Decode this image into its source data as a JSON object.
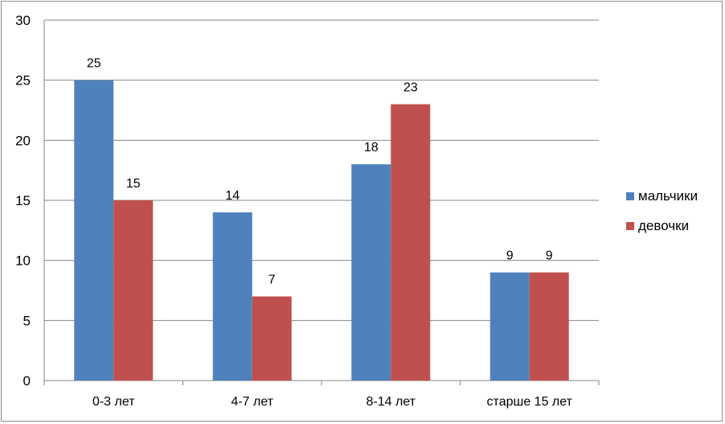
{
  "chart_data": {
    "type": "bar",
    "categories": [
      "0-3 лет",
      "4-7 лет",
      "8-14 лет",
      "старше 15 лет"
    ],
    "series": [
      {
        "name": "мальчики",
        "values": [
          25,
          14,
          18,
          9
        ],
        "color": "#4f81bd"
      },
      {
        "name": "девочки",
        "values": [
          15,
          7,
          23,
          9
        ],
        "color": "#c0504d"
      }
    ],
    "yticks": [
      "0",
      "5",
      "10",
      "15",
      "20",
      "25",
      "30"
    ],
    "ylim": [
      0,
      30
    ],
    "grid": true,
    "legend_position": "right",
    "data_labels": true
  }
}
